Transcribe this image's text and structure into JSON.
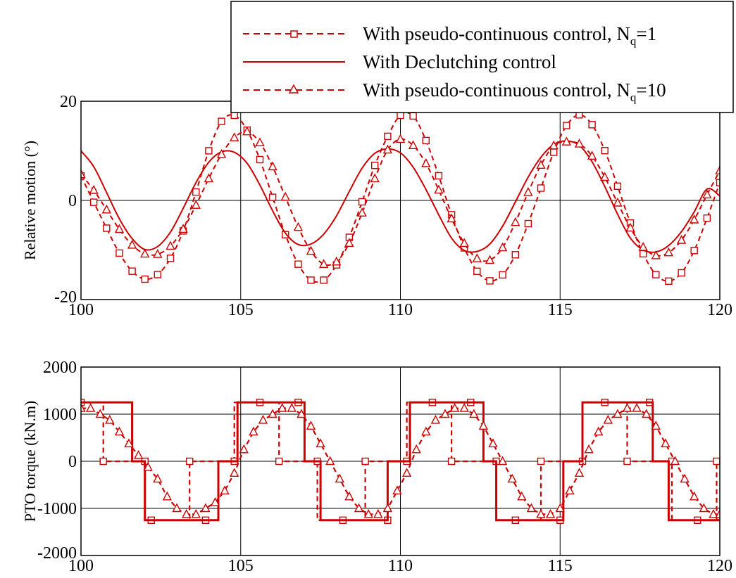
{
  "colors": {
    "series": "#cc0000",
    "axis": "#000000",
    "grid": "#000000",
    "background": "#ffffff"
  },
  "legend": {
    "placement": "top-right",
    "entries": [
      {
        "id": "nq1",
        "main": "With pseudo-continuous control, N",
        "sub": "q",
        "tail": "=1",
        "marker": "square",
        "dash": "dashed"
      },
      {
        "id": "declutch",
        "main": "With Declutching control",
        "sub": "",
        "tail": "",
        "marker": "none",
        "dash": "solid"
      },
      {
        "id": "nq10",
        "main": "With pseudo-continuous control, N",
        "sub": "q",
        "tail": "=10",
        "marker": "triangle",
        "dash": "dashed"
      }
    ]
  },
  "chart_data": [
    {
      "id": "motion",
      "type": "line",
      "title": "",
      "xlabel": "",
      "ylabel": "Relative motion (°)",
      "xlim": [
        100,
        120
      ],
      "ylim": [
        -20,
        20
      ],
      "xticks": [
        "100",
        "105",
        "110",
        "115",
        "120"
      ],
      "yticks": [
        "-20",
        "0",
        "20"
      ],
      "grid": true,
      "series": [
        {
          "name": "With pseudo-continuous control, Nq=1",
          "marker": "square",
          "dash": "dashed",
          "x": [
            100,
            100.4,
            100.8,
            101.2,
            101.6,
            102,
            102.4,
            102.8,
            103.2,
            103.6,
            104,
            104.4,
            104.8,
            105.2,
            105.6,
            106,
            106.4,
            106.8,
            107.2,
            107.6,
            108,
            108.4,
            108.8,
            109.2,
            109.6,
            110,
            110.4,
            110.8,
            111.2,
            111.6,
            112,
            112.4,
            112.8,
            113.2,
            113.6,
            114,
            114.4,
            114.8,
            115.2,
            115.6,
            116,
            116.4,
            116.8,
            117.2,
            117.6,
            118,
            118.4,
            118.8,
            119.2,
            119.6,
            120
          ],
          "y": [
            4.95,
            -0.37,
            -5.6,
            -10.62,
            -14.28,
            -15.88,
            -14.97,
            -11.68,
            -6.15,
            1.69,
            10.01,
            15.94,
            17.17,
            14.17,
            8.23,
            0.62,
            -6.91,
            -12.86,
            -16.08,
            -16.09,
            -13.01,
            -7.45,
            -0.28,
            7.07,
            12.92,
            17.17,
            17.04,
            12.07,
            4.96,
            -2.89,
            -9.58,
            -14.3,
            -16.23,
            -15.02,
            -10.97,
            -4.68,
            2.48,
            9.71,
            15.09,
            17.26,
            15.28,
            10.04,
            2.86,
            -4.55,
            -10.77,
            -14.98,
            -16.28,
            -14.61,
            -10.12,
            -3.58,
            3.58
          ]
        },
        {
          "name": "With Declutching control",
          "marker": "none",
          "dash": "solid",
          "x": [
            100,
            100.4,
            100.8,
            101.2,
            101.6,
            102,
            102.4,
            102.8,
            103.2,
            103.6,
            104,
            104.4,
            104.8,
            105.2,
            105.6,
            106,
            106.4,
            106.8,
            107.2,
            107.6,
            108,
            108.4,
            108.8,
            109.2,
            109.6,
            110,
            110.4,
            110.8,
            111.2,
            111.6,
            112,
            112.4,
            112.8,
            113.2,
            113.6,
            114,
            114.4,
            114.8,
            115.2,
            115.6,
            116,
            116.4,
            116.8,
            117.2,
            117.6,
            118,
            118.4,
            118.8,
            119.2,
            119.6,
            120
          ],
          "y": [
            10,
            6.8,
            1.6,
            -3.7,
            -7.7,
            -9.9,
            -9.3,
            -6.4,
            -1.6,
            3.6,
            7.7,
            9.8,
            9.7,
            7.5,
            3.1,
            -2.1,
            -6.6,
            -8.9,
            -8.8,
            -6.8,
            -3.1,
            1.8,
            6.5,
            9.5,
            10.4,
            9.6,
            6.7,
            2.2,
            -2.9,
            -7.6,
            -10.1,
            -10.3,
            -8.8,
            -5.2,
            -0.3,
            4.7,
            8.7,
            11.3,
            12.0,
            11.1,
            7.8,
            2.8,
            -2.8,
            -7.6,
            -10.0,
            -10.4,
            -9.1,
            -6.3,
            -2.3,
            2.3,
            0.9
          ]
        },
        {
          "name": "With pseudo-continuous control, Nq=10",
          "marker": "triangle",
          "dash": "dashed",
          "x": [
            100,
            100.4,
            100.8,
            101.2,
            101.6,
            102,
            102.4,
            102.8,
            103.2,
            103.6,
            104,
            104.4,
            104.8,
            105.2,
            105.6,
            106,
            106.4,
            106.8,
            107.2,
            107.6,
            108,
            108.4,
            108.8,
            109.2,
            109.6,
            110,
            110.4,
            110.8,
            111.2,
            111.6,
            112,
            112.4,
            112.8,
            113.2,
            113.6,
            114,
            114.4,
            114.8,
            115.2,
            115.6,
            116,
            116.4,
            116.8,
            117.2,
            117.6,
            118,
            118.4,
            118.8,
            119.2,
            119.6,
            120
          ],
          "y": [
            5.24,
            2.05,
            -1.88,
            -5.82,
            -9.0,
            -10.79,
            -10.86,
            -9.2,
            -5.79,
            -0.95,
            4.41,
            9.3,
            12.67,
            13.87,
            11.66,
            6.81,
            0.68,
            -5.42,
            -10.22,
            -12.88,
            -12.38,
            -8.62,
            -2.51,
            4.41,
            10.2,
            12.35,
            11.09,
            7.45,
            2.11,
            -3.69,
            -8.65,
            -11.73,
            -12.05,
            -9.52,
            -4.43,
            1.65,
            7.12,
            11.04,
            11.82,
            11.4,
            8.96,
            4.68,
            -0.5,
            -5.54,
            -9.43,
            -11.12,
            -10.52,
            -8.02,
            -3.9,
            1.15,
            5.99
          ]
        }
      ]
    },
    {
      "id": "torque",
      "type": "line",
      "title": "",
      "xlabel": "",
      "ylabel": "PTO torque (kN.m)",
      "xlim": [
        100,
        120
      ],
      "ylim": [
        -2000,
        2000
      ],
      "xticks": [
        "100",
        "105",
        "110",
        "115",
        "120"
      ],
      "yticks": [
        "-2000",
        "-1000",
        "0",
        "1000",
        "2000"
      ],
      "grid": true,
      "series": [
        {
          "name": "With pseudo-continuous control, Nq=1",
          "marker": "square",
          "dash": "dashed",
          "x": [
            100,
            100.7,
            100.7,
            102,
            102,
            103.4,
            103.4,
            104.8,
            104.8,
            106.2,
            106.2,
            107.4,
            107.4,
            108.9,
            108.9,
            110.2,
            110.2,
            111.6,
            111.6,
            113,
            113,
            114.4,
            114.4,
            115.7,
            115.7,
            117.1,
            117.1,
            118.5,
            118.5,
            119.9,
            119.9,
            120
          ],
          "y": [
            1250,
            1250,
            0,
            0,
            -1250,
            -1250,
            0,
            0,
            1250,
            1250,
            0,
            0,
            -1250,
            -1250,
            0,
            0,
            1250,
            1250,
            0,
            0,
            -1250,
            -1250,
            0,
            0,
            1250,
            1250,
            0,
            0,
            -1250,
            -1250,
            0,
            0
          ],
          "markers_x": [
            100,
            100.7,
            102,
            102.2,
            103.4,
            103.9,
            104.8,
            105.6,
            106.2,
            106.8,
            107.4,
            108.2,
            108.9,
            109.6,
            110.2,
            111,
            111.6,
            112.2,
            113,
            113.6,
            114.4,
            115,
            115.7,
            116.4,
            117.1,
            117.8,
            118.5,
            119.3,
            119.9
          ],
          "markers_y": [
            1250,
            0,
            0,
            -1250,
            0,
            -1250,
            0,
            1250,
            0,
            1250,
            0,
            -1250,
            0,
            -1250,
            0,
            1250,
            0,
            1250,
            0,
            -1250,
            0,
            -1250,
            0,
            1250,
            0,
            1250,
            0,
            -1250,
            0
          ]
        },
        {
          "name": "With Declutching control",
          "marker": "none",
          "dash": "solid",
          "x": [
            100,
            101.6,
            101.6,
            102,
            102,
            104.3,
            104.3,
            104.9,
            104.9,
            107,
            107,
            107.5,
            107.5,
            109.6,
            109.6,
            110.3,
            110.3,
            112.6,
            112.6,
            113,
            113,
            115.1,
            115.1,
            115.7,
            115.7,
            117.9,
            117.9,
            118.4,
            118.4,
            120
          ],
          "y": [
            1250,
            1250,
            0,
            0,
            -1250,
            -1250,
            0,
            0,
            1250,
            1250,
            0,
            0,
            -1250,
            -1250,
            0,
            0,
            1250,
            1250,
            0,
            0,
            -1250,
            -1250,
            0,
            0,
            1250,
            1250,
            0,
            0,
            -1250,
            -1250
          ]
        },
        {
          "name": "With pseudo-continuous control, Nq=10",
          "marker": "triangle",
          "dash": "dashed",
          "x": [
            100,
            100.3,
            100.6,
            100.9,
            101.2,
            101.5,
            101.8,
            102.1,
            102.4,
            102.7,
            103,
            103.3,
            103.6,
            103.9,
            104.2,
            104.5,
            104.8,
            105.1,
            105.4,
            105.7,
            106,
            106.3,
            106.6,
            106.9,
            107.2,
            107.5,
            107.8,
            108.1,
            108.4,
            108.7,
            109,
            109.3,
            109.6,
            109.9,
            110.2,
            110.5,
            110.8,
            111.1,
            111.4,
            111.7,
            112,
            112.3,
            112.6,
            112.9,
            113.2,
            113.5,
            113.8,
            114.1,
            114.4,
            114.7,
            115,
            115.3,
            115.6,
            115.9,
            116.2,
            116.5,
            116.8,
            117.1,
            117.4,
            117.7,
            118,
            118.3,
            118.6,
            118.9,
            119.2,
            119.5,
            119.8,
            120
          ],
          "y": [
            1125,
            1125,
            1000,
            875,
            625,
            375,
            125,
            -125,
            -375,
            -750,
            -1000,
            -1125,
            -1125,
            -1000,
            -875,
            -625,
            -250,
            250,
            625,
            875,
            1000,
            1125,
            1125,
            1000,
            750,
            375,
            0,
            -375,
            -750,
            -1000,
            -1125,
            -1125,
            -1000,
            -625,
            -250,
            250,
            625,
            875,
            1000,
            1125,
            1125,
            1000,
            750,
            375,
            0,
            -375,
            -750,
            -1000,
            -1125,
            -1125,
            -1000,
            -625,
            -250,
            250,
            625,
            875,
            1000,
            1125,
            1125,
            1000,
            750,
            375,
            0,
            -375,
            -750,
            -1000,
            -1125,
            -1125
          ]
        }
      ]
    }
  ]
}
